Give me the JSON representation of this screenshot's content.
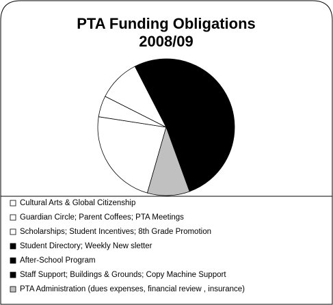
{
  "chart_data": {
    "type": "pie",
    "title": [
      "PTA Funding Obligations",
      "2008/09"
    ],
    "categories": [
      "Cultural Arts & Global Citizenship",
      "Guardian Circle; Parent Coffees; PTA Meetings",
      "Scholarships; Student Incentives; 8th Grade Promotion",
      "Student Directory; Weekly New sletter",
      "After-School Program",
      "Staff Support; Buildings & Grounds; Copy Machine Support",
      "PTA Administration (dues expenses, financial review , insurance)"
    ],
    "values": [
      23,
      5,
      10,
      6,
      35,
      11,
      10
    ],
    "colors": [
      "#ffffff",
      "#ffffff",
      "#ffffff",
      "#000000",
      "#000000",
      "#000000",
      "#c0c0c0"
    ]
  }
}
